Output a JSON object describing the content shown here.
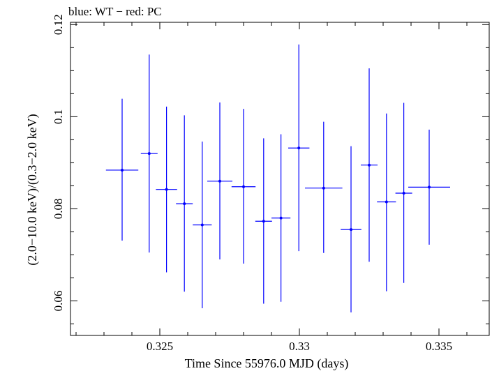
{
  "chart_data": {
    "type": "scatter",
    "title": "blue: WT − red: PC",
    "xlabel": "Time Since 55976.0 MJD (days)",
    "ylabel": "(2.0−10.0 keV)/(0.3−2.0 keV)",
    "xlim": [
      0.3218,
      0.3368
    ],
    "ylim": [
      0.0525,
      0.1205
    ],
    "grid": false,
    "xticks": [
      {
        "value": 0.325,
        "label": "0.325"
      },
      {
        "value": 0.33,
        "label": "0.33"
      },
      {
        "value": 0.335,
        "label": "0.335"
      }
    ],
    "yticks": [
      {
        "value": 0.06,
        "label": "0.06"
      },
      {
        "value": 0.08,
        "label": "0.08"
      },
      {
        "value": 0.1,
        "label": "0.1"
      },
      {
        "value": 0.12,
        "label": "0.12"
      }
    ],
    "series": [
      {
        "color": "#0000ff",
        "points": [
          {
            "x": 0.32365,
            "xerr": 0.00058,
            "y": 0.0884,
            "ylo": 0.0731,
            "yhi": 0.1039
          },
          {
            "x": 0.32462,
            "xerr": 0.0003,
            "y": 0.092,
            "ylo": 0.0705,
            "yhi": 0.1135
          },
          {
            "x": 0.32524,
            "xerr": 0.00038,
            "y": 0.0842,
            "ylo": 0.0662,
            "yhi": 0.1022
          },
          {
            "x": 0.32588,
            "xerr": 0.0003,
            "y": 0.0811,
            "ylo": 0.062,
            "yhi": 0.1003
          },
          {
            "x": 0.32652,
            "xerr": 0.00034,
            "y": 0.0765,
            "ylo": 0.0584,
            "yhi": 0.0946
          },
          {
            "x": 0.32715,
            "xerr": 0.00045,
            "y": 0.086,
            "ylo": 0.069,
            "yhi": 0.1031
          },
          {
            "x": 0.328,
            "xerr": 0.00043,
            "y": 0.0848,
            "ylo": 0.0681,
            "yhi": 0.1017
          },
          {
            "x": 0.32872,
            "xerr": 0.0003,
            "y": 0.0773,
            "ylo": 0.0594,
            "yhi": 0.0953
          },
          {
            "x": 0.32934,
            "xerr": 0.00034,
            "y": 0.078,
            "ylo": 0.0598,
            "yhi": 0.0962
          },
          {
            "x": 0.32998,
            "xerr": 0.00038,
            "y": 0.0932,
            "ylo": 0.0708,
            "yhi": 0.1157
          },
          {
            "x": 0.33087,
            "xerr": 0.00067,
            "y": 0.0845,
            "ylo": 0.0704,
            "yhi": 0.0989
          },
          {
            "x": 0.33185,
            "xerr": 0.00037,
            "y": 0.0755,
            "ylo": 0.0575,
            "yhi": 0.0936
          },
          {
            "x": 0.3325,
            "xerr": 0.0003,
            "y": 0.0895,
            "ylo": 0.0685,
            "yhi": 0.1105
          },
          {
            "x": 0.33312,
            "xerr": 0.00034,
            "y": 0.0815,
            "ylo": 0.0621,
            "yhi": 0.1007
          },
          {
            "x": 0.33374,
            "xerr": 0.0003,
            "y": 0.0834,
            "ylo": 0.0639,
            "yhi": 0.103
          },
          {
            "x": 0.33465,
            "xerr": 0.00075,
            "y": 0.0847,
            "ylo": 0.0722,
            "yhi": 0.0972
          }
        ]
      }
    ]
  }
}
